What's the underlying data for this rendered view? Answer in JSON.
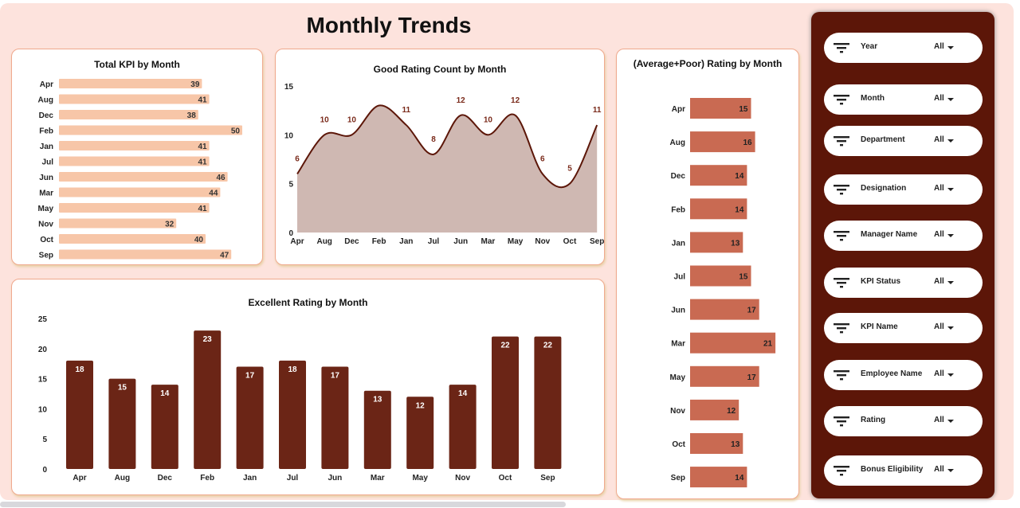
{
  "page": {
    "title": "Monthly Trends"
  },
  "chart_data": [
    {
      "type": "bar",
      "orientation": "horizontal",
      "title": "Total KPI by Month",
      "categories": [
        "Apr",
        "Aug",
        "Dec",
        "Feb",
        "Jan",
        "Jul",
        "Jun",
        "Mar",
        "May",
        "Nov",
        "Oct",
        "Sep"
      ],
      "values": [
        39,
        41,
        38,
        50,
        41,
        41,
        46,
        44,
        41,
        32,
        40,
        47
      ],
      "color": "#f7c6a8"
    },
    {
      "type": "area",
      "title": "Good Rating Count by Month",
      "categories": [
        "Apr",
        "Aug",
        "Dec",
        "Feb",
        "Jan",
        "Jul",
        "Jun",
        "Mar",
        "May",
        "Nov",
        "Oct",
        "Sep"
      ],
      "values": [
        6,
        10,
        10,
        13,
        11,
        8,
        12,
        10,
        12,
        6,
        5,
        11
      ],
      "data_labels": [
        "6",
        "10",
        "10",
        "",
        "11",
        "8",
        "12",
        "10",
        "12",
        "6",
        "5",
        "11"
      ],
      "yticks": [
        0,
        5,
        10,
        15
      ],
      "ylim": [
        0,
        15
      ],
      "line_color": "#5c1608",
      "fill_color": "#cfb8b2"
    },
    {
      "type": "bar",
      "title": "Excellent Rating by Month",
      "categories": [
        "Apr",
        "Aug",
        "Dec",
        "Feb",
        "Jan",
        "Jul",
        "Jun",
        "Mar",
        "May",
        "Nov",
        "Oct",
        "Sep"
      ],
      "values": [
        18,
        15,
        14,
        23,
        17,
        18,
        17,
        13,
        12,
        14,
        22,
        22
      ],
      "yticks": [
        0,
        5,
        10,
        15,
        20,
        25
      ],
      "ylim": [
        0,
        25
      ],
      "color": "#6b2516"
    },
    {
      "type": "bar",
      "orientation": "horizontal",
      "title": "(Average+Poor) Rating by Month",
      "categories": [
        "Apr",
        "Aug",
        "Dec",
        "Feb",
        "Jan",
        "Jul",
        "Jun",
        "Mar",
        "May",
        "Nov",
        "Oct",
        "Sep"
      ],
      "values": [
        15,
        16,
        14,
        14,
        13,
        15,
        17,
        21,
        17,
        12,
        13,
        14
      ],
      "color": "#c96a52"
    }
  ],
  "filters": [
    {
      "label": "Year",
      "value": "All"
    },
    {
      "label": "Month",
      "value": "All"
    },
    {
      "label": "Department",
      "value": "All"
    },
    {
      "label": "Designation",
      "value": "All"
    },
    {
      "label": "Manager Name",
      "value": "All"
    },
    {
      "label": "KPI Status",
      "value": "All"
    },
    {
      "label": "KPI Name",
      "value": "All"
    },
    {
      "label": "Employee Name",
      "value": "All"
    },
    {
      "label": "Rating",
      "value": "All"
    },
    {
      "label": "Bonus Eligibility",
      "value": "All"
    }
  ]
}
